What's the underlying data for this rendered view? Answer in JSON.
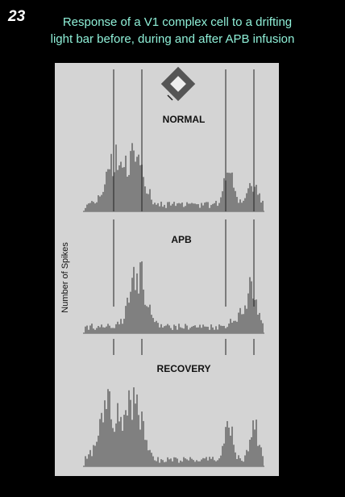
{
  "slide_number": "23",
  "title": [
    "Response of a V1 complex cell to a drifting",
    "light bar before, during and after APB infusion"
  ],
  "figure": {
    "y_axis_label": "Number of Spikes",
    "panels": [
      "NORMAL",
      "APB",
      "RECOVERY"
    ]
  }
}
